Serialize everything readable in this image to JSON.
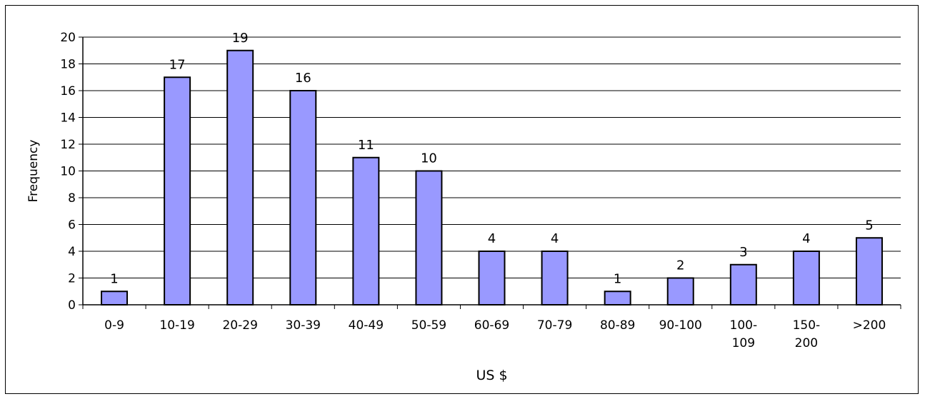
{
  "chart_data": {
    "type": "bar",
    "categories": [
      [
        "0-9"
      ],
      [
        "10-19"
      ],
      [
        "20-29"
      ],
      [
        "30-39"
      ],
      [
        "40-49"
      ],
      [
        "50-59"
      ],
      [
        "60-69"
      ],
      [
        "70-79"
      ],
      [
        "80-89"
      ],
      [
        "90-100"
      ],
      [
        "100-",
        "109"
      ],
      [
        "150-",
        "200"
      ],
      [
        ">200"
      ]
    ],
    "values": [
      1,
      17,
      19,
      16,
      11,
      10,
      4,
      4,
      1,
      2,
      3,
      4,
      5
    ],
    "xlabel": "US $",
    "ylabel": "Frequency",
    "ylim": [
      0,
      20
    ],
    "yticks": [
      0,
      2,
      4,
      6,
      8,
      10,
      12,
      14,
      16,
      18,
      20
    ],
    "grid": "horizontal",
    "data_labels": true,
    "bar_color": "#9999ff",
    "bar_border_color": "#000000"
  }
}
